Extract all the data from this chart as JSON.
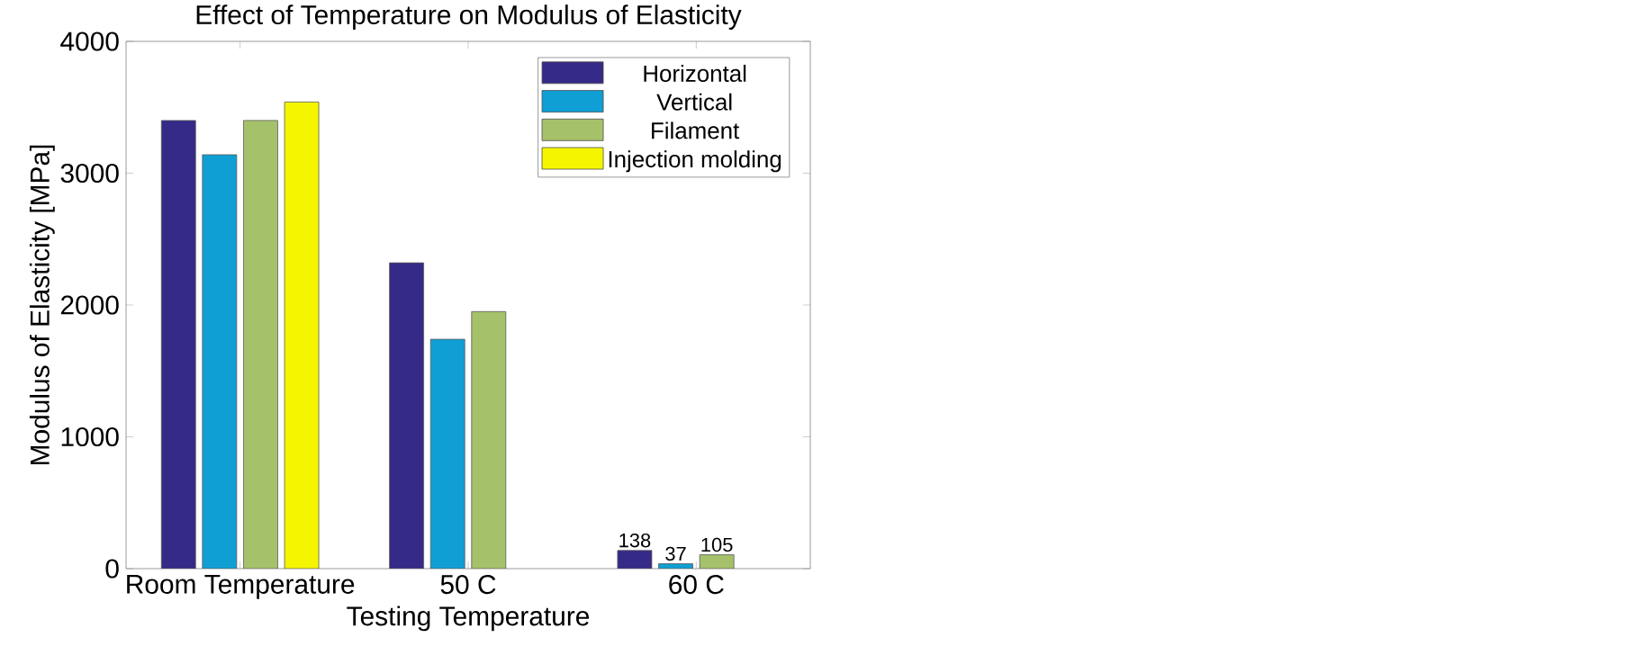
{
  "chart_data": {
    "type": "bar",
    "title": "Effect of Temperature on Modulus of Elasticity",
    "xlabel": "Testing Temperature",
    "ylabel": "Modulus of Elasticity [MPa]",
    "categories": [
      "Room Temperature",
      "50 C",
      "60 C"
    ],
    "series": [
      {
        "name": "Horizontal",
        "color": "#352a87",
        "values": [
          3400,
          2320,
          138
        ],
        "value_labels": [
          null,
          null,
          "138"
        ]
      },
      {
        "name": "Vertical",
        "color": "#0f9fd4",
        "values": [
          3140,
          1740,
          37
        ],
        "value_labels": [
          null,
          null,
          "37"
        ]
      },
      {
        "name": "Filament",
        "color": "#a5c26a",
        "values": [
          3400,
          1950,
          105
        ],
        "value_labels": [
          null,
          null,
          "105"
        ]
      },
      {
        "name": "Injection molding",
        "color": "#f5f500",
        "values": [
          3540,
          null,
          null
        ]
      }
    ],
    "ylim": [
      0,
      4000
    ],
    "yticks": [
      0,
      1000,
      2000,
      3000,
      4000
    ],
    "grid": false,
    "legend": "top right"
  }
}
